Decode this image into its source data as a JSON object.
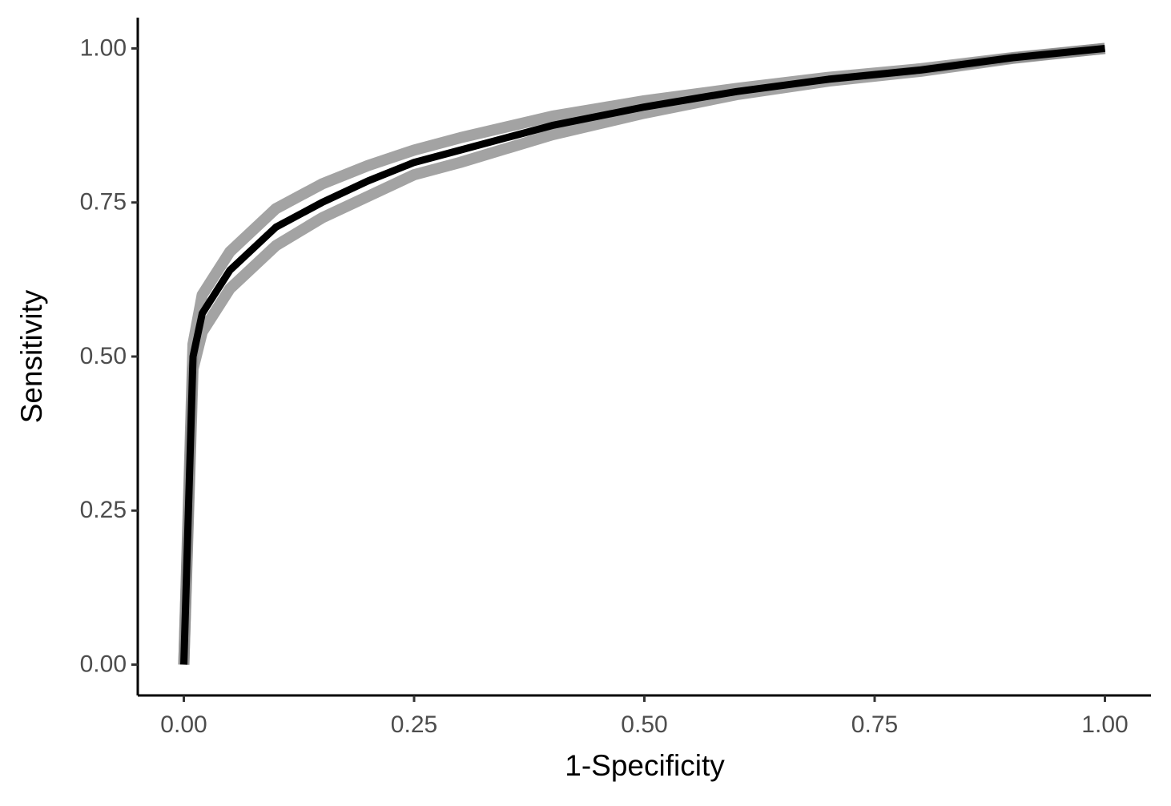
{
  "chart_data": {
    "type": "line",
    "xlabel": "1-Specificity",
    "ylabel": "Sensitivity",
    "x": [
      0,
      0.01,
      0.02,
      0.05,
      0.1,
      0.15,
      0.2,
      0.25,
      0.3,
      0.4,
      0.5,
      0.6,
      0.7,
      0.8,
      0.9,
      1
    ],
    "series": [
      {
        "color": "#8c8c8c",
        "values": [
          0,
          0.52,
          0.6,
          0.67,
          0.74,
          0.78,
          0.81,
          0.835,
          0.855,
          0.89,
          0.915,
          0.935,
          0.953,
          0.967,
          0.985,
          1
        ]
      },
      {
        "color": "#8c8c8c",
        "values": [
          0,
          0.48,
          0.54,
          0.61,
          0.68,
          0.725,
          0.76,
          0.795,
          0.815,
          0.86,
          0.895,
          0.925,
          0.947,
          0.963,
          0.984,
          1
        ]
      },
      {
        "color": "#000000",
        "values": [
          0,
          0.5,
          0.57,
          0.64,
          0.71,
          0.75,
          0.785,
          0.815,
          0.835,
          0.875,
          0.905,
          0.93,
          0.95,
          0.965,
          0.985,
          1
        ]
      }
    ],
    "xlim": [
      -0.05,
      1.05
    ],
    "ylim": [
      -0.05,
      1.05
    ],
    "xticks": [
      {
        "value": 0,
        "label": "0.00"
      },
      0.25,
      {
        "value": 0.5,
        "label": "0.50"
      },
      0.75,
      {
        "value": 1,
        "label": "1.00"
      }
    ],
    "yticks": [
      {
        "value": 0,
        "label": "0.00"
      },
      0.25,
      {
        "value": 0.5,
        "label": "0.50"
      },
      0.75,
      {
        "value": 1,
        "label": "1.00"
      }
    ],
    "grid": false
  }
}
